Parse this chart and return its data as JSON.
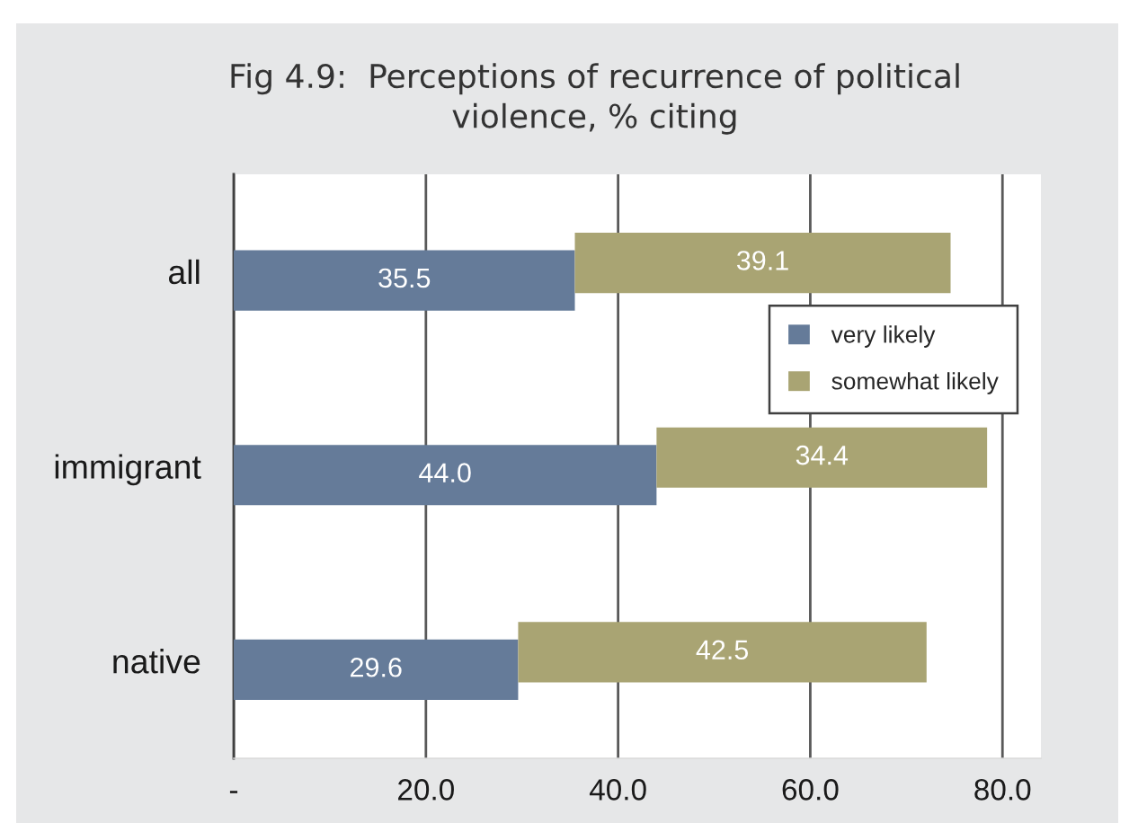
{
  "chart_data": {
    "type": "bar",
    "orientation": "horizontal",
    "stacked": true,
    "title": "Fig 4.9:  Perceptions of recurrence of political\nviolence, % citing",
    "categories": [
      "all",
      "immigrant",
      "native"
    ],
    "series": [
      {
        "name": "very likely",
        "color": "#657b99",
        "values": [
          35.5,
          44.0,
          29.6
        ],
        "value_labels": [
          "35.5",
          "44.0",
          "29.6"
        ]
      },
      {
        "name": "somewhat likely",
        "color": "#a9a473",
        "values": [
          39.1,
          34.4,
          42.5
        ],
        "value_labels": [
          "39.1",
          "34.4",
          "42.5"
        ]
      }
    ],
    "xlim": [
      0,
      84
    ],
    "xticks": [
      {
        "value": 0,
        "label": "-"
      },
      {
        "value": 20,
        "label": "20.0"
      },
      {
        "value": 40,
        "label": "40.0"
      },
      {
        "value": 60,
        "label": "60.0"
      },
      {
        "value": 80,
        "label": "80.0"
      }
    ],
    "grid": "x",
    "legend": "right"
  }
}
